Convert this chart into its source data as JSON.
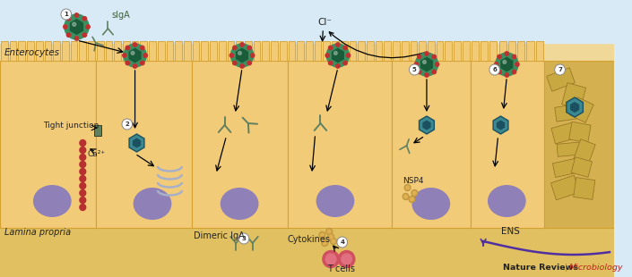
{
  "background_sky": "#d8eaf5",
  "background_cell_band": "#f0d898",
  "background_lamina": "#e8c870",
  "cell_fill": "#f2cb78",
  "cell_border": "#d4a030",
  "villus_fill": "#f2cb78",
  "nucleus_color": "#9080b8",
  "virus_green_outer": "#3a9060",
  "virus_green_inner": "#1a5c3a",
  "virus_teal_outer": "#3a8890",
  "virus_teal_inner": "#1a5060",
  "virus_spike": "#c03030",
  "arrow_color": "#111111",
  "antibody_color": "#608060",
  "er_color": "#a8b0c8",
  "ca_rod_color": "#b83030",
  "tight_junc_fill": "#608060",
  "tight_junc_border": "#304030",
  "tcell_color": "#d05060",
  "cytokine_color": "#c09840",
  "nsp4_color": "#c09840",
  "ens_color": "#5030a0",
  "debris_fill": "#c8a840",
  "debris_border": "#907020",
  "debris_bg": "#d4b050",
  "footer_black": "#222222",
  "footer_red": "#c02020",
  "text_dark": "#222222",
  "text_green": "#406040",
  "labels": {
    "enterocytes": "Enterocytes",
    "lamina_propria": "Lamina propria",
    "tight_junction": "Tight junction",
    "siga": "sIgA",
    "dimeric_iga": "Dimeric IgA",
    "cytokines": "Cytokines",
    "t_cells": "T cells",
    "cl": "Cl⁻",
    "ens": "ENS",
    "nsp4": "NSP4",
    "ca": "Ca²⁺",
    "footer1": "Nature Reviews",
    "footer_sep": " | ",
    "footer2": "Microbiology"
  },
  "figsize": [
    7.05,
    3.1
  ],
  "dpi": 100
}
